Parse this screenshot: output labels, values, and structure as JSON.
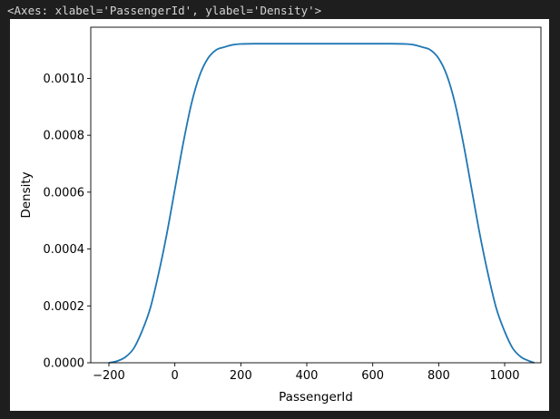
{
  "output": {
    "repr_text": "<Axes: xlabel='PassengerId', ylabel='Density'>"
  },
  "chart_data": {
    "type": "line",
    "title": "",
    "xlabel": "PassengerId",
    "ylabel": "Density",
    "xlim": [
      -255,
      1110
    ],
    "ylim": [
      0,
      0.00118
    ],
    "xticks": [
      -200,
      0,
      200,
      400,
      600,
      800,
      1000
    ],
    "xtick_labels": [
      "−200",
      "0",
      "200",
      "400",
      "600",
      "800",
      "1000"
    ],
    "yticks": [
      0,
      0.0002,
      0.0004,
      0.0006,
      0.0008,
      0.001
    ],
    "ytick_labels": [
      "0.0000",
      "0.0002",
      "0.0004",
      "0.0006",
      "0.0008",
      "0.0010"
    ],
    "grid": false,
    "line_color": "#1f77b4",
    "series": [
      {
        "x": [
          -200,
          -175,
          -150,
          -125,
          -100,
          -75,
          -50,
          -25,
          0,
          25,
          50,
          75,
          100,
          125,
          150,
          175,
          200,
          250,
          300,
          400,
          500,
          600,
          650,
          700,
          725,
          750,
          775,
          800,
          825,
          850,
          875,
          900,
          925,
          950,
          975,
          1000,
          1025,
          1050,
          1075,
          1090
        ],
        "y": [
          0.0,
          6e-06,
          2e-05,
          5e-05,
          0.00011,
          0.00019,
          0.00031,
          0.00045,
          0.00061,
          0.00077,
          0.00091,
          0.00101,
          0.00107,
          0.0011,
          0.00111,
          0.001118,
          0.001121,
          0.001122,
          0.001122,
          0.001122,
          0.001122,
          0.001122,
          0.001122,
          0.001121,
          0.001118,
          0.00111,
          0.0011,
          0.00107,
          0.00101,
          0.00091,
          0.00077,
          0.00061,
          0.00045,
          0.00031,
          0.00019,
          0.00011,
          5e-05,
          2e-05,
          6e-06,
          0.0
        ]
      }
    ]
  }
}
